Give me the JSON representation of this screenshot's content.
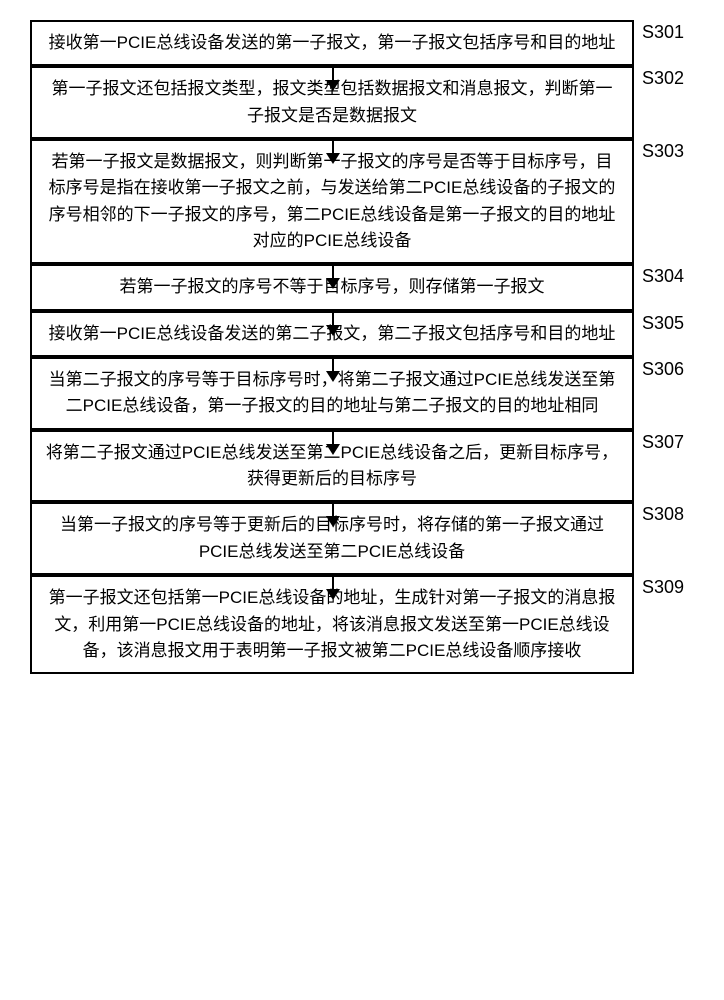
{
  "flowchart": {
    "background_color": "#ffffff",
    "border_color": "#000000",
    "text_color": "#000000",
    "font_size": 17,
    "border_width": 2,
    "arrow_width": 2,
    "arrow_head_size": 11,
    "steps": [
      {
        "label": "S301",
        "text": "接收第一PCIE总线设备发送的第一子报文，第一子报文包括序号和目的地址"
      },
      {
        "label": "S302",
        "text": "第一子报文还包括报文类型，报文类型包括数据报文和消息报文，判断第一子报文是否是数据报文"
      },
      {
        "label": "S303",
        "text": "若第一子报文是数据报文，则判断第一子报文的序号是否等于目标序号，目标序号是指在接收第一子报文之前，与发送给第二PCIE总线设备的子报文的序号相邻的下一子报文的序号，第二PCIE总线设备是第一子报文的目的地址对应的PCIE总线设备"
      },
      {
        "label": "S304",
        "text": "若第一子报文的序号不等于目标序号，则存储第一子报文"
      },
      {
        "label": "S305",
        "text": "接收第一PCIE总线设备发送的第二子报文，第二子报文包括序号和目的地址"
      },
      {
        "label": "S306",
        "text": "当第二子报文的序号等于目标序号时，将第二子报文通过PCIE总线发送至第二PCIE总线设备，第一子报文的目的地址与第二子报文的目的地址相同"
      },
      {
        "label": "S307",
        "text": "将第二子报文通过PCIE总线发送至第二PCIE总线设备之后，更新目标序号，获得更新后的目标序号"
      },
      {
        "label": "S308",
        "text": "当第一子报文的序号等于更新后的目标序号时，将存储的第一子报文通过PCIE总线发送至第二PCIE总线设备"
      },
      {
        "label": "S309",
        "text": "第一子报文还包括第一PCIE总线设备的地址，生成针对第一子报文的消息报文，利用第一PCIE总线设备的地址，将该消息报文发送至第一PCIE总线设备，该消息报文用于表明第一子报文被第二PCIE总线设备顺序接收"
      }
    ]
  }
}
